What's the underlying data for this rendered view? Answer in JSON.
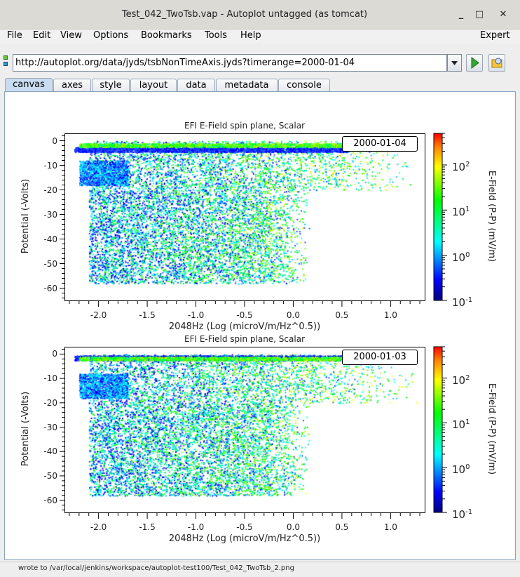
{
  "window": {
    "title": "Test_042_TwoTsb.vap - Autoplot untagged (as tomcat)",
    "minimize": "_",
    "maximize": "□",
    "close": "✕"
  },
  "menu": {
    "items": [
      "File",
      "Edit",
      "View",
      "Options",
      "Bookmarks",
      "Tools",
      "Help"
    ],
    "expert": "Expert"
  },
  "address": {
    "url": "http://autoplot.org/data/jyds/tsbNonTimeAxis.jyds?timerange=2000-01-04"
  },
  "tabs": [
    "canvas",
    "axes",
    "style",
    "layout",
    "data",
    "metadata",
    "console"
  ],
  "selected_tab": "canvas",
  "status": "wrote to /var/local/jenkins/workspace/autoplot-test100/Test_042_TwoTsb_2.png",
  "chart_data": [
    {
      "type": "scatter",
      "title": "EFI  E-Field spin plane, Scalar",
      "annotation": "2000-01-04",
      "xlabel": "2048Hz (Log (microV/m/Hz^0.5))",
      "ylabel": "Potential (-Volts)",
      "xlim": [
        -2.35,
        1.35
      ],
      "ylim": [
        -65,
        3
      ],
      "xticks": [
        "-2.0",
        "-1.5",
        "-1.0",
        "-0.5",
        "0.0",
        "0.5",
        "1.0"
      ],
      "yticks": [
        "0",
        "-10",
        "-20",
        "-30",
        "-40",
        "-50",
        "-60"
      ],
      "colorbar": {
        "label": "E-Field (P-P) (mV/m)",
        "scale": "log",
        "range": [
          0.1,
          500
        ],
        "ticks": [
          "10",
          "10",
          "10",
          "10"
        ],
        "exps": [
          "2",
          "1",
          "0",
          "-1"
        ]
      }
    },
    {
      "type": "scatter",
      "title": "EFI  E-Field spin plane, Scalar",
      "annotation": "2000-01-03",
      "xlabel": "2048Hz (Log (microV/m/Hz^0.5))",
      "ylabel": "Potential (-Volts)",
      "xlim": [
        -2.35,
        1.35
      ],
      "ylim": [
        -65,
        3
      ],
      "xticks": [
        "-2.0",
        "-1.5",
        "-1.0",
        "-0.5",
        "0.0",
        "0.5",
        "1.0"
      ],
      "yticks": [
        "0",
        "-10",
        "-20",
        "-30",
        "-40",
        "-50",
        "-60"
      ],
      "colorbar": {
        "label": "E-Field (P-P) (mV/m)",
        "scale": "log",
        "range": [
          0.1,
          500
        ],
        "ticks": [
          "10",
          "10",
          "10",
          "10"
        ],
        "exps": [
          "2",
          "1",
          "0",
          "-1"
        ]
      }
    }
  ]
}
